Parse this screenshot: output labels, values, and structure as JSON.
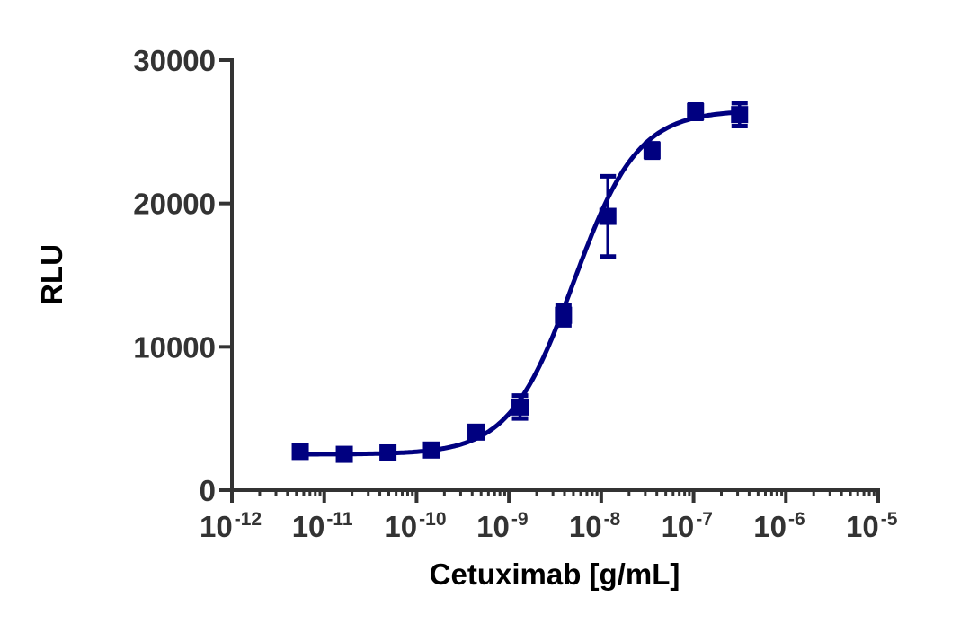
{
  "chart_data": {
    "type": "scatter",
    "title": "",
    "xlabel": "Cetuximab [g/mL]",
    "ylabel": "RLU",
    "xscale": "log",
    "xlim": [
      1e-12,
      1e-05
    ],
    "ylim": [
      0,
      30000
    ],
    "grid": false,
    "legend": null,
    "x_ticks": [
      {
        "exp": -12,
        "base": "10",
        "sup": "-12"
      },
      {
        "exp": -11,
        "base": "10",
        "sup": "-11"
      },
      {
        "exp": -10,
        "base": "10",
        "sup": "-10"
      },
      {
        "exp": -9,
        "base": "10",
        "sup": "-9"
      },
      {
        "exp": -8,
        "base": "10",
        "sup": "-8"
      },
      {
        "exp": -7,
        "base": "10",
        "sup": "-7"
      },
      {
        "exp": -6,
        "base": "10",
        "sup": "-6"
      },
      {
        "exp": -5,
        "base": "10",
        "sup": "-5"
      }
    ],
    "y_ticks": [
      0,
      10000,
      20000,
      30000
    ],
    "series": [
      {
        "name": "Cetuximab",
        "color": "#000080",
        "marker": "square",
        "fit": "4PL sigmoidal",
        "x": [
          5.5e-12,
          1.65e-11,
          4.9e-11,
          1.45e-10,
          4.4e-10,
          1.32e-09,
          3.9e-09,
          1.18e-08,
          3.55e-08,
          1.05e-07,
          3.15e-07
        ],
        "y": [
          2700,
          2500,
          2600,
          2800,
          4050,
          5800,
          12200,
          19100,
          23700,
          26400,
          26200
        ],
        "error": [
          150,
          150,
          150,
          200,
          300,
          800,
          700,
          2800,
          500,
          500,
          800
        ]
      }
    ],
    "fit_params": {
      "bottom": 2500,
      "top": 26500,
      "log_ec50": -8.3,
      "hill": 1.25
    }
  },
  "labels": {
    "ylabel": "RLU",
    "xlabel": "Cetuximab [g/mL]"
  }
}
